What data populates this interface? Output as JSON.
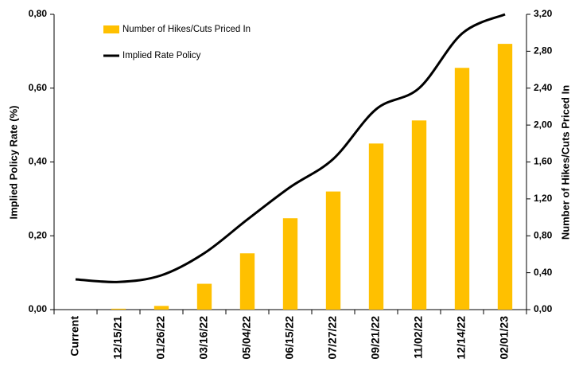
{
  "chart_data": {
    "type": "bar-line",
    "categories": [
      "Current",
      "12/15/21",
      "01/26/22",
      "03/16/22",
      "05/04/22",
      "06/15/22",
      "07/27/22",
      "09/21/22",
      "11/02/22",
      "12/14/22",
      "02/01/23"
    ],
    "series": [
      {
        "name": "Number of Hikes/Cuts Priced In",
        "type": "bar",
        "axis": "y2",
        "color": "#ffc000",
        "values": [
          0,
          0.01,
          0.04,
          0.28,
          0.61,
          0.99,
          1.28,
          1.8,
          2.05,
          2.62,
          2.88
        ]
      },
      {
        "name": "Implied Rate Policy",
        "type": "line",
        "axis": "y",
        "color": "#000000",
        "values": [
          0.082,
          0.075,
          0.093,
          0.153,
          0.244,
          0.332,
          0.408,
          0.543,
          0.6,
          0.748,
          0.8
        ]
      }
    ],
    "ylabel": "Implied Policy Rate (%)",
    "y2label": "Number of Hikes/Cuts Priced In",
    "ylim": [
      0,
      0.8
    ],
    "yticks": [
      {
        "value": 0,
        "label": "0,00"
      },
      {
        "value": 0.2,
        "label": "0,20"
      },
      {
        "value": 0.4,
        "label": "0,40"
      },
      {
        "value": 0.6,
        "label": "0,60"
      },
      {
        "value": 0.8,
        "label": "0,80"
      }
    ],
    "y2lim": [
      0,
      3.2
    ],
    "y2ticks": [
      {
        "value": 0,
        "label": "0,00"
      },
      {
        "value": 0.4,
        "label": "0,40"
      },
      {
        "value": 0.8,
        "label": "0,80"
      },
      {
        "value": 1.2,
        "label": "1,20"
      },
      {
        "value": 1.6,
        "label": "1,60"
      },
      {
        "value": 2.0,
        "label": "2,00"
      },
      {
        "value": 2.4,
        "label": "2,40"
      },
      {
        "value": 2.8,
        "label": "2,80"
      },
      {
        "value": 3.2,
        "label": "3,20"
      }
    ],
    "grid": false,
    "legend": "upper left"
  }
}
